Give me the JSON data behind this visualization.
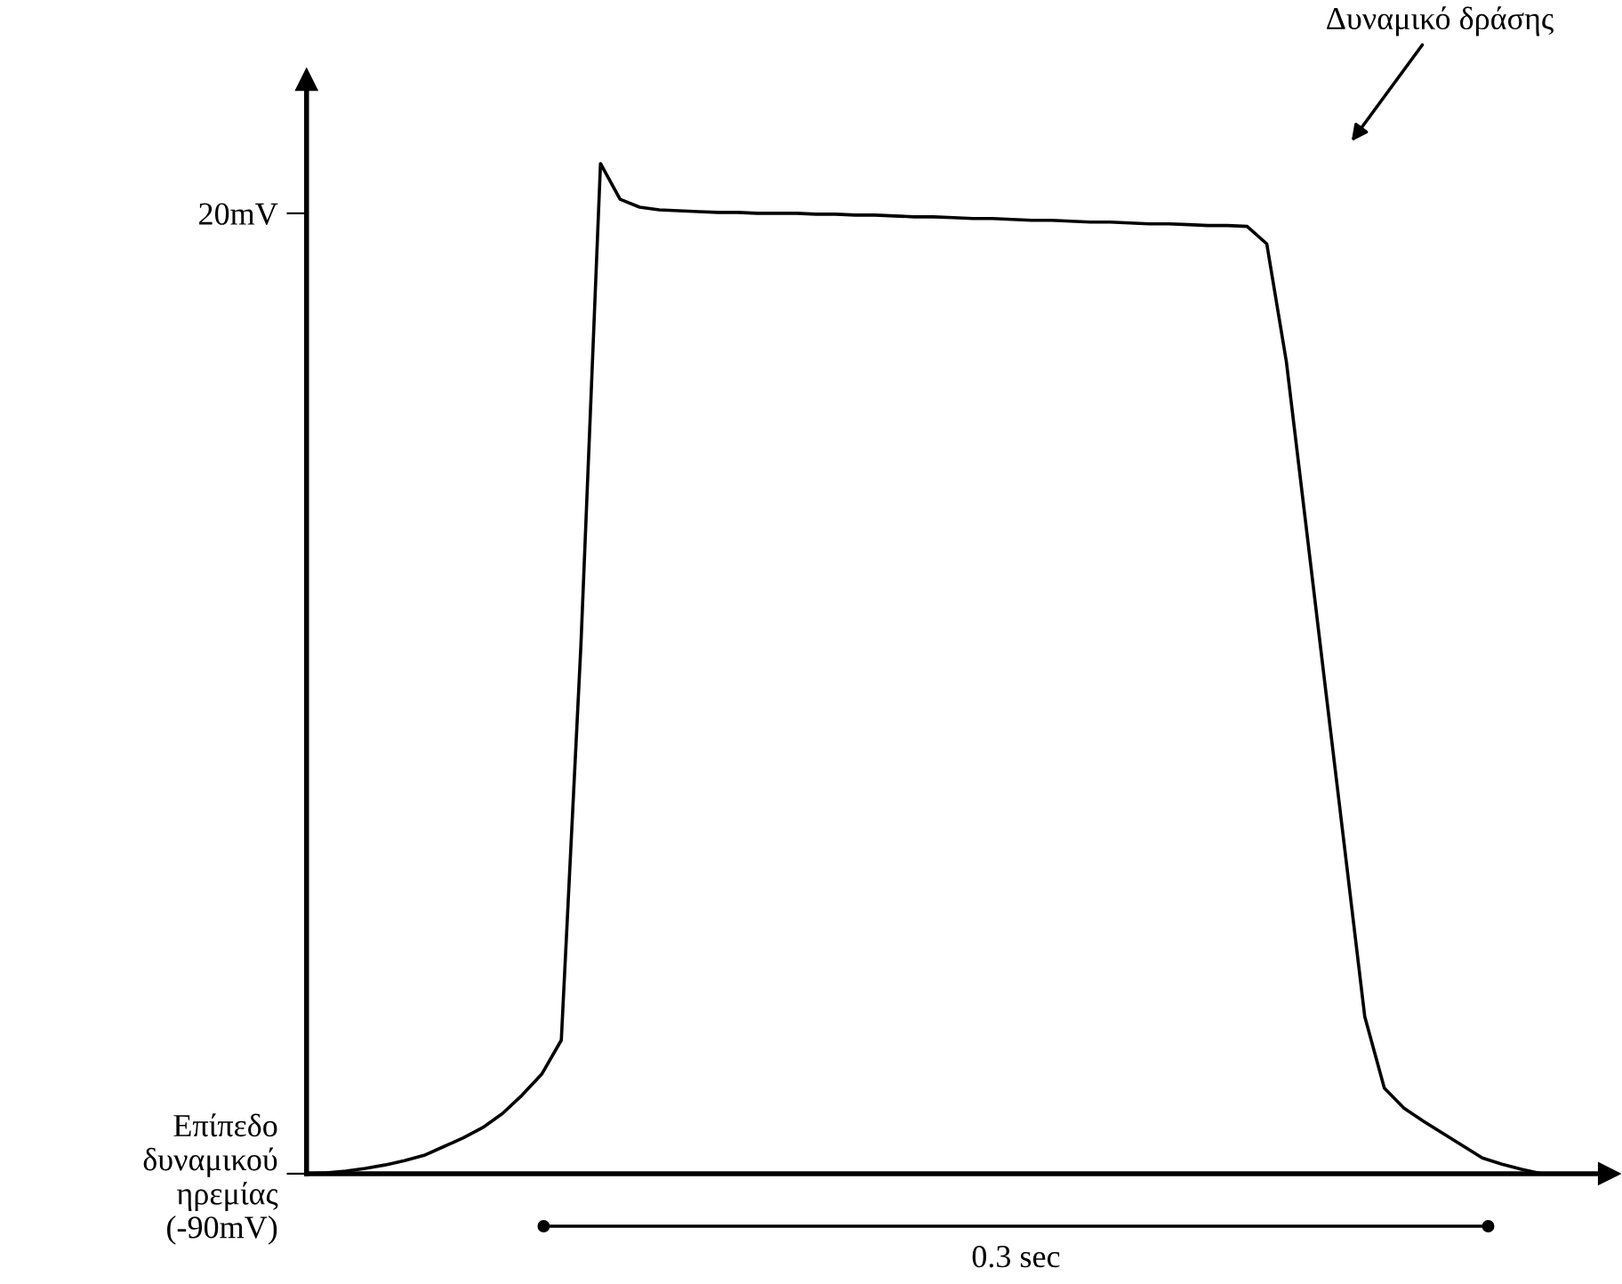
{
  "chart_data": {
    "type": "line",
    "categories": [
      null,
      null,
      null,
      null,
      null,
      null,
      null,
      null,
      null,
      null,
      null,
      null,
      null,
      null,
      null,
      null,
      null,
      null,
      null,
      null,
      null,
      null,
      null,
      null,
      null,
      null,
      null,
      null,
      null,
      null,
      null,
      null,
      null,
      null,
      null,
      null,
      null,
      null,
      null,
      null,
      null,
      null,
      null,
      null,
      null,
      null,
      null,
      null,
      null,
      null,
      null,
      null,
      null,
      null,
      null,
      null,
      null,
      null,
      null,
      null,
      null,
      null,
      null,
      null
    ],
    "series": [
      {
        "color": "#000000",
        "values": [
          -90,
          -89.9,
          -89.7,
          -89.4,
          -89.0,
          -88.5,
          -87.9,
          -86.9,
          -85.9,
          -84.7,
          -83.1,
          -81.0,
          -78.6,
          -74.7,
          -29.5,
          25.7,
          21.6,
          20.7,
          20.4,
          20.3,
          20.2,
          20.1,
          20.1,
          20.0,
          20.0,
          20.0,
          19.9,
          19.9,
          19.8,
          19.8,
          19.7,
          19.6,
          19.6,
          19.5,
          19.4,
          19.4,
          19.3,
          19.2,
          19.2,
          19.1,
          19.0,
          19.0,
          18.9,
          18.8,
          18.8,
          18.7,
          18.6,
          18.6,
          18.5,
          16.5,
          3.0,
          -15.7,
          -34.5,
          -53.2,
          -72.0,
          -80.2,
          -82.5,
          -84.0,
          -85.4,
          -86.8,
          -88.2,
          -88.9,
          -89.5,
          -90
        ]
      }
    ],
    "ylim": [
      -90,
      35.3
    ],
    "yticks": [
      {
        "value": 20,
        "label": "20mV"
      },
      {
        "value": -90,
        "label": "Επίπεδο\nδυναμικού\nηρεμίας\n(-90mV)"
      }
    ],
    "tick_labels": "y",
    "annotations": [
      "Δυναμικό δράσης",
      "0.3 sec"
    ]
  }
}
